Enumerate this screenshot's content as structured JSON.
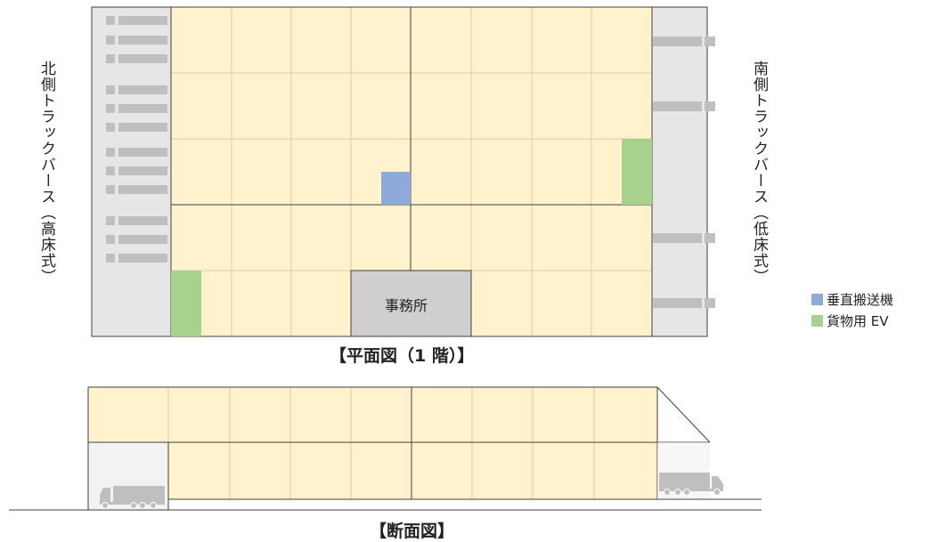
{
  "plan": {
    "title": "【平面図（1 階）】",
    "north_label": "北側トラックバース（高床式）",
    "south_label": "南側トラックバース（低床式）",
    "office_label": "事務所"
  },
  "section": {
    "title": "【断面図】"
  },
  "legend": {
    "items": [
      {
        "label": "垂直搬送機",
        "color": "#8eaadb"
      },
      {
        "label": "貨物用 EV",
        "color": "#a9d18e"
      }
    ]
  },
  "colors": {
    "floor": "#fff2cc",
    "grid": "#d9cfa8",
    "wall": "#404040",
    "berth": "#e7e6e6",
    "dock": "#bfbfbf",
    "office": "#d0cece"
  }
}
